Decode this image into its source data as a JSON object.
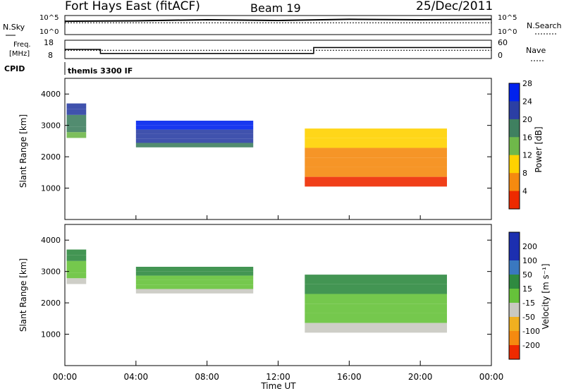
{
  "header": {
    "station": "Fort Hays East (fitACF)",
    "beam": "Beam 19",
    "date": "25/Dec/2011"
  },
  "noise_panel": {
    "left_label": "N.Sky",
    "left_ticks": [
      "10^5",
      "10^0"
    ],
    "right_label": "N.Search",
    "right_ticks": [
      "10^5",
      "10^0"
    ]
  },
  "freq_panel": {
    "left_label_1": "Freq.",
    "left_label_2": "[MHz]",
    "left_ticks": [
      "18",
      "8"
    ],
    "right_label": "Nave",
    "right_ticks": [
      "60",
      "0"
    ],
    "cpid_label": "CPID",
    "cpid_value": "themis 3300 IF"
  },
  "range_axis": {
    "label": "Slant Range [km]",
    "ticks": [
      "1000",
      "2000",
      "3000",
      "4000"
    ]
  },
  "power_colorbar": {
    "label": "Power [dB]",
    "ticks": [
      "4",
      "8",
      "12",
      "16",
      "20",
      "24",
      "28"
    ],
    "colors": [
      "#0022ee",
      "#2b3fa4",
      "#3f8060",
      "#6fb84a",
      "#ffd200",
      "#f58a10",
      "#ee2a00"
    ]
  },
  "velocity_colorbar": {
    "label": "Velocity [m s⁻¹]",
    "ticks": [
      "200",
      "100",
      "50",
      "15",
      "-15",
      "-50",
      "-100",
      "-200"
    ],
    "colors": [
      "#1c2fb0",
      "#3a78c0",
      "#2f8a40",
      "#66c23a",
      "#c9c9c1",
      "#f0b020",
      "#f58a10",
      "#ee2a00"
    ]
  },
  "time_axis": {
    "label": "Time UT",
    "ticks": [
      "00:00",
      "04:00",
      "08:00",
      "12:00",
      "16:00",
      "20:00",
      "00:00"
    ]
  },
  "chart_data": {
    "type": "heatmap",
    "x_unit": "hours UT",
    "x_range": [
      0,
      24
    ],
    "y_range": [
      0,
      4500
    ],
    "noise_trace": [
      {
        "t": 0,
        "v": 0.7
      },
      {
        "t": 4,
        "v": 0.72
      },
      {
        "t": 8,
        "v": 0.78
      },
      {
        "t": 12,
        "v": 0.74
      },
      {
        "t": 16,
        "v": 0.8
      },
      {
        "t": 20,
        "v": 0.78
      },
      {
        "t": 24,
        "v": 0.8
      }
    ],
    "frequency_mhz": [
      {
        "t": 0,
        "v": 13.0
      },
      {
        "t": 2.0,
        "v": 13.0
      },
      {
        "t": 2.0,
        "v": 10.8
      },
      {
        "t": 14.0,
        "v": 10.8
      },
      {
        "t": 14.0,
        "v": 14.0
      },
      {
        "t": 24,
        "v": 14.0
      }
    ],
    "nave": [
      {
        "t": 0,
        "v": 27
      },
      {
        "t": 24,
        "v": 27
      }
    ],
    "power_echo_bands": [
      {
        "t0": 0.1,
        "t1": 1.2,
        "r_top": 3700,
        "r_bottom": 2600,
        "level": 3
      },
      {
        "t0": 4.0,
        "t1": 10.6,
        "r_top": 3150,
        "r_bottom": 2300,
        "level": 2
      },
      {
        "t0": 13.5,
        "t1": 21.5,
        "r_top": 2900,
        "r_bottom": 1050,
        "level": 6
      }
    ],
    "velocity_echo_bands": [
      {
        "t0": 0.1,
        "t1": 1.2,
        "r_top": 3700,
        "r_bottom": 2600,
        "level": 4
      },
      {
        "t0": 4.0,
        "t1": 10.6,
        "r_top": 3150,
        "r_bottom": 2300,
        "level": 4
      },
      {
        "t0": 13.5,
        "t1": 21.5,
        "r_top": 2900,
        "r_bottom": 1050,
        "level": 4
      }
    ]
  }
}
